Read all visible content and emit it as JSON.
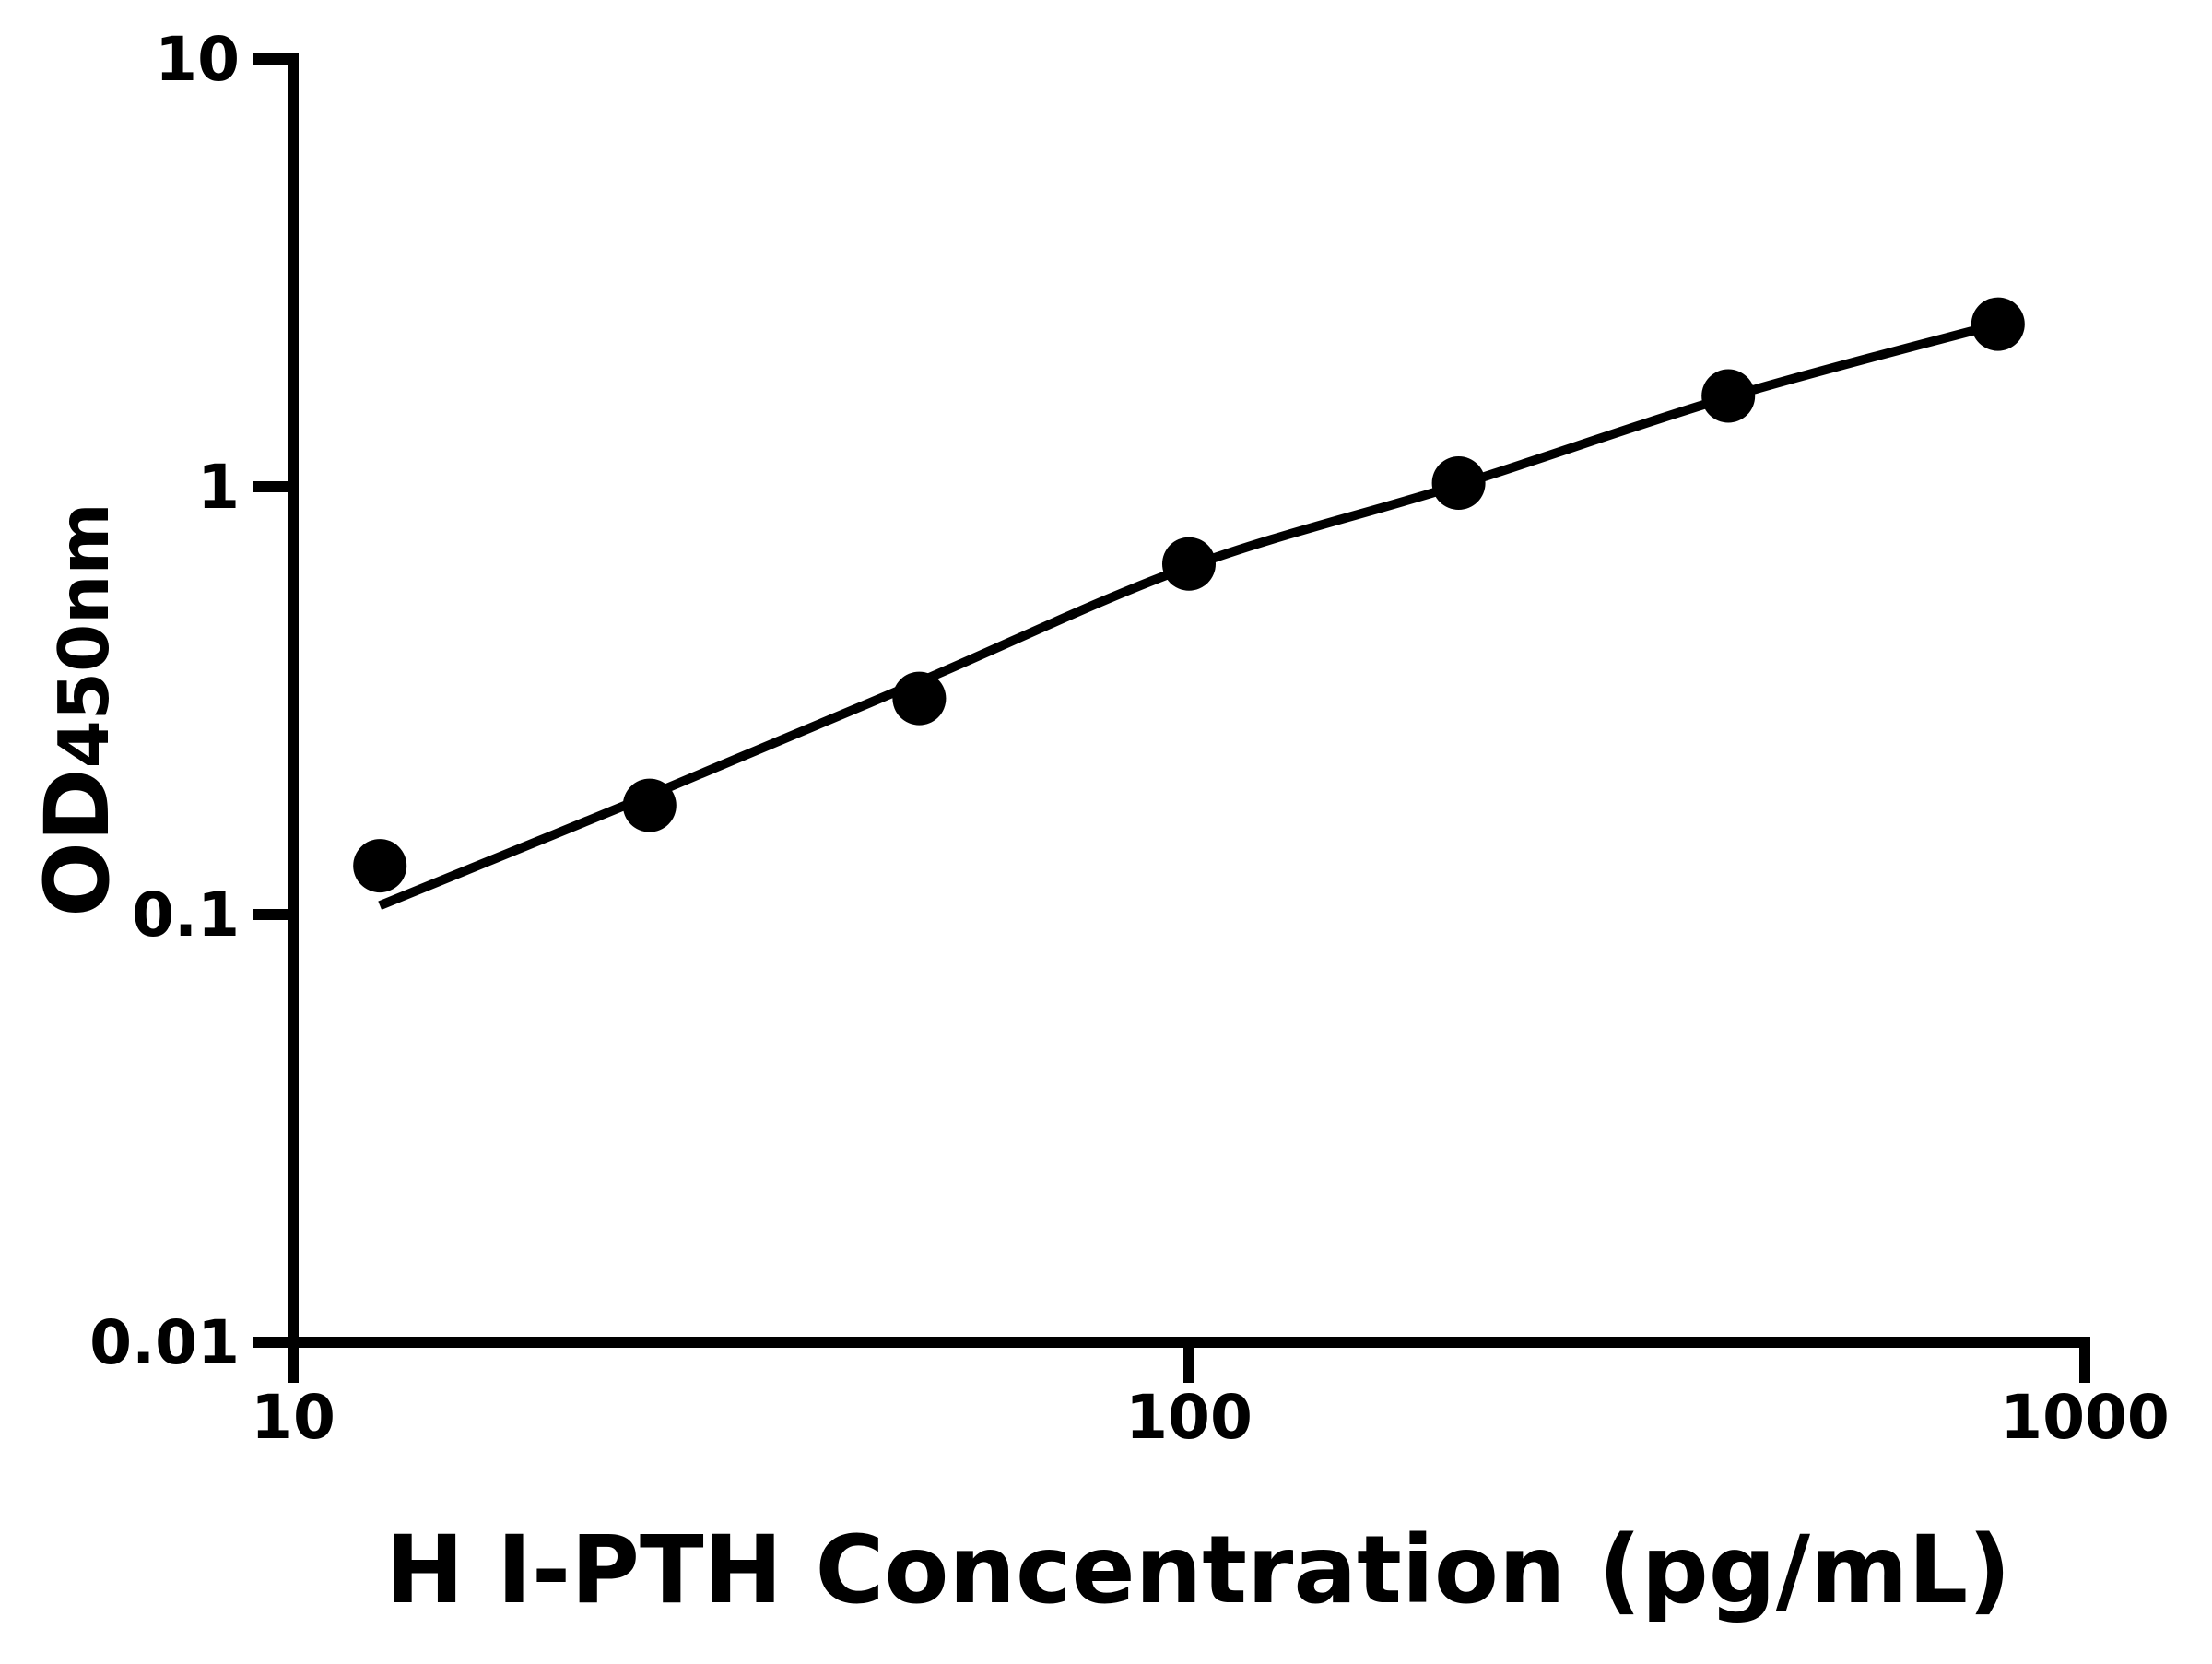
{
  "figure": {
    "background": "#ffffff",
    "foreground": "#000000"
  },
  "chart_data": {
    "type": "scatter",
    "title": "",
    "xlabel": "H I-PTH Concentration (pg/mL)",
    "ylabel_main": "OD",
    "ylabel_subscript": "450nm",
    "x_scale": "log",
    "y_scale": "log",
    "xlim": [
      10,
      1000
    ],
    "ylim": [
      0.01,
      10
    ],
    "x_ticks": {
      "values": [
        10,
        100,
        1000
      ],
      "labels": [
        "10",
        "100",
        "1000"
      ]
    },
    "y_ticks": {
      "values": [
        10,
        1,
        0.1,
        0.01
      ],
      "labels": [
        "10",
        "1",
        "0.1",
        "0.01"
      ]
    },
    "grid": false,
    "legend": false,
    "series": [
      {
        "name": "standard-points",
        "type": "scatter",
        "marker": "filled-circle",
        "color": "#000000",
        "x": [
          12.5,
          25,
          50,
          100,
          200,
          400,
          800
        ],
        "y": [
          0.13,
          0.18,
          0.32,
          0.66,
          1.02,
          1.63,
          2.4
        ]
      },
      {
        "name": "fit-curve",
        "type": "line",
        "color": "#000000",
        "x": [
          12.5,
          25,
          50,
          100,
          200,
          400,
          800
        ],
        "y": [
          0.105,
          0.19,
          0.35,
          0.65,
          1.01,
          1.62,
          2.4
        ]
      }
    ]
  }
}
